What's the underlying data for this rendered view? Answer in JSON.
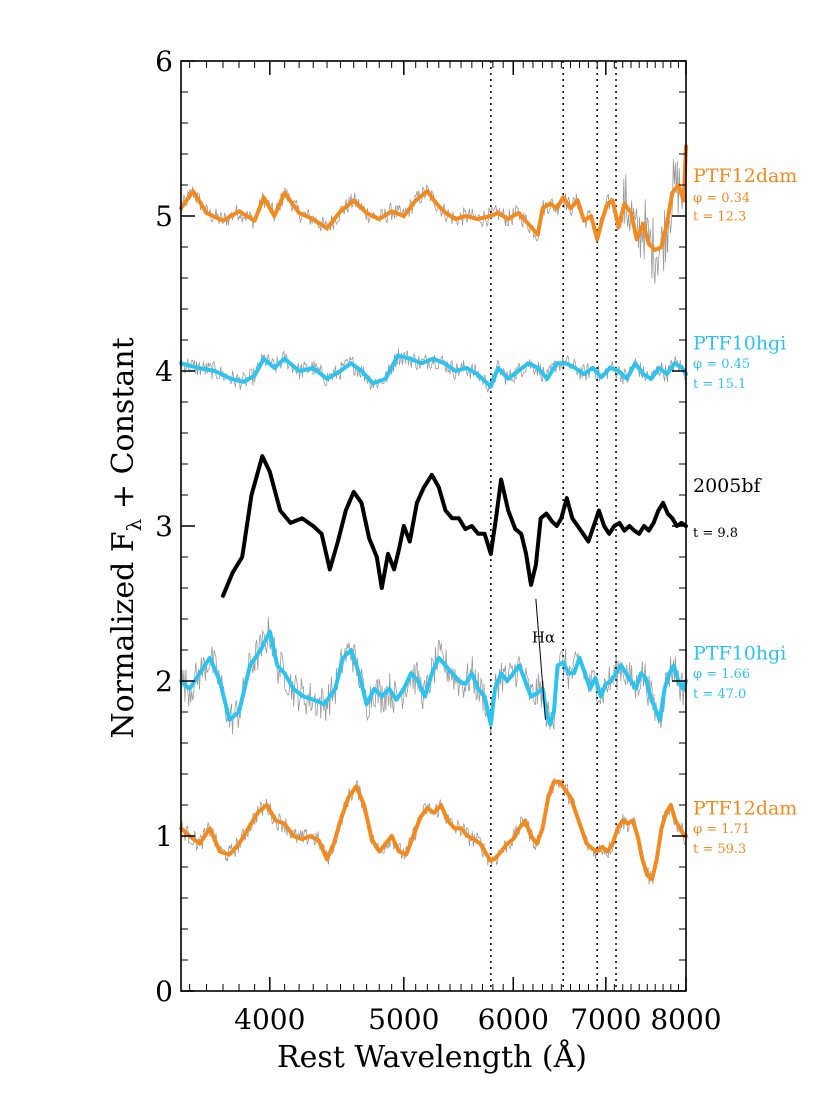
{
  "chart_data": {
    "type": "line",
    "xlabel_main": "Rest Wavelength (",
    "xlabel_unit": "Å",
    "xlabel_close": ")",
    "ylabel_main": "Normalized F",
    "ylabel_sub": "λ",
    "ylabel_rest": " + Constant",
    "x_scale": "log",
    "xlim": [
      3450,
      8000
    ],
    "ylim": [
      0,
      6
    ],
    "grid": false,
    "x_ticks": [
      4000,
      5000,
      6000,
      7000,
      8000
    ],
    "x_tick_labels": [
      "4000",
      "5000",
      "6000",
      "7000",
      "8000"
    ],
    "y_ticks": [
      0,
      1,
      2,
      3,
      4,
      5,
      6
    ],
    "y_tick_labels": [
      "0",
      "1",
      "2",
      "3",
      "4",
      "5",
      "6"
    ],
    "vlines": [
      5780,
      6520,
      6900,
      7120
    ],
    "annotation": {
      "text": "Hα",
      "x": 6310,
      "y": 2.25,
      "line_from": [
        6230,
        2.53
      ],
      "line_to": [
        6330,
        1.75
      ]
    },
    "series": [
      {
        "name": "PTF12dam",
        "labels": [
          "PTF12dam",
          "φ = 0.34",
          "t = 12.3"
        ],
        "label_y": [
          5.22,
          5.09,
          4.97
        ],
        "color": "#f28a1e",
        "noisy": true,
        "x": [
          3450,
          3520,
          3600,
          3700,
          3800,
          3900,
          3960,
          4030,
          4100,
          4200,
          4300,
          4400,
          4500,
          4600,
          4700,
          4800,
          4900,
          5000,
          5100,
          5200,
          5280,
          5360,
          5450,
          5550,
          5650,
          5780,
          5850,
          5950,
          6050,
          6150,
          6250,
          6300,
          6380,
          6450,
          6520,
          6600,
          6680,
          6750,
          6830,
          6900,
          6960,
          7020,
          7080,
          7150,
          7220,
          7300,
          7370,
          7450,
          7520,
          7600,
          7680,
          7750,
          7820,
          7900,
          7970,
          8000
        ],
        "y": [
          5.05,
          5.16,
          5.02,
          4.97,
          5.03,
          4.97,
          5.12,
          5.0,
          5.15,
          5.02,
          4.98,
          4.92,
          5.03,
          5.1,
          5.02,
          4.98,
          5.03,
          5.0,
          5.1,
          5.16,
          5.08,
          5.02,
          4.98,
          5.0,
          4.98,
          5.0,
          5.02,
          4.98,
          5.02,
          4.95,
          4.88,
          5.05,
          5.08,
          5.05,
          5.12,
          5.05,
          5.1,
          4.97,
          5.0,
          4.85,
          4.98,
          5.08,
          5.1,
          4.93,
          5.08,
          5.02,
          4.85,
          4.95,
          4.82,
          4.78,
          4.8,
          4.95,
          5.15,
          5.2,
          5.1,
          5.45
        ]
      },
      {
        "name": "PTF10hgi",
        "labels": [
          "PTF10hgi",
          "φ = 0.45",
          "t = 15.1"
        ],
        "label_y": [
          4.14,
          4.02,
          3.89
        ],
        "color": "#2cc3ef",
        "noisy": true,
        "x": [
          3450,
          3550,
          3650,
          3750,
          3830,
          3900,
          3960,
          4030,
          4100,
          4200,
          4300,
          4400,
          4500,
          4580,
          4660,
          4750,
          4850,
          4950,
          5050,
          5150,
          5250,
          5350,
          5450,
          5550,
          5650,
          5780,
          5850,
          5950,
          6050,
          6150,
          6250,
          6350,
          6450,
          6550,
          6650,
          6750,
          6850,
          6950,
          7050,
          7150,
          7250,
          7350,
          7450,
          7550,
          7650,
          7750,
          7850,
          7950,
          8000
        ],
        "y": [
          4.05,
          4.02,
          4.0,
          3.95,
          3.93,
          3.97,
          4.08,
          4.02,
          4.08,
          4.0,
          4.02,
          3.95,
          4.0,
          4.05,
          4.0,
          3.92,
          3.95,
          4.1,
          4.08,
          4.05,
          4.08,
          4.05,
          4.0,
          4.02,
          3.98,
          3.9,
          4.02,
          3.95,
          4.0,
          4.05,
          4.02,
          3.95,
          4.05,
          4.05,
          4.02,
          3.98,
          4.02,
          3.96,
          4.02,
          4.0,
          3.95,
          4.05,
          3.98,
          3.95,
          4.02,
          3.98,
          4.05,
          4.02,
          3.98
        ]
      },
      {
        "name": "2005bf",
        "labels": [
          "2005bf",
          "t = 9.8"
        ],
        "label_y": [
          3.22,
          2.93
        ],
        "color": "#000000",
        "noisy": false,
        "x": [
          3700,
          3760,
          3820,
          3880,
          3950,
          4000,
          4070,
          4140,
          4220,
          4300,
          4360,
          4420,
          4480,
          4540,
          4600,
          4660,
          4720,
          4780,
          4820,
          4870,
          4920,
          4960,
          5000,
          5050,
          5110,
          5170,
          5240,
          5300,
          5360,
          5420,
          5480,
          5540,
          5600,
          5660,
          5720,
          5780,
          5830,
          5880,
          5950,
          6020,
          6080,
          6130,
          6180,
          6230,
          6280,
          6340,
          6400,
          6450,
          6500,
          6560,
          6620,
          6680,
          6740,
          6800,
          6860,
          6920,
          6980,
          7040,
          7100,
          7160,
          7220,
          7280,
          7340,
          7400,
          7460,
          7520,
          7580,
          7640,
          7700,
          7760,
          7820,
          7880,
          7940,
          8000
        ],
        "y": [
          2.55,
          2.7,
          2.8,
          3.2,
          3.45,
          3.35,
          3.1,
          3.02,
          3.05,
          3.0,
          2.95,
          2.72,
          2.9,
          3.1,
          3.22,
          3.15,
          2.92,
          2.8,
          2.6,
          2.82,
          2.72,
          2.85,
          3.0,
          2.9,
          3.15,
          3.25,
          3.33,
          3.25,
          3.1,
          3.05,
          3.05,
          2.98,
          3.0,
          2.95,
          2.95,
          2.82,
          3.05,
          3.3,
          3.1,
          2.98,
          2.95,
          2.82,
          2.62,
          2.75,
          3.05,
          3.08,
          3.03,
          3.0,
          3.05,
          3.18,
          3.05,
          3.0,
          2.95,
          2.9,
          3.0,
          3.1,
          3.0,
          2.95,
          3.0,
          3.02,
          2.97,
          3.0,
          2.97,
          2.95,
          3.0,
          2.97,
          3.02,
          3.1,
          3.15,
          3.08,
          3.05,
          3.0,
          3.02,
          3.0
        ]
      },
      {
        "name": "PTF10hgi",
        "labels": [
          "PTF10hgi",
          "φ = 1.66",
          "t = 47.0"
        ],
        "label_y": [
          2.14,
          2.02,
          1.89
        ],
        "color": "#2cc3ef",
        "noisy": true,
        "x": [
          3450,
          3500,
          3560,
          3620,
          3680,
          3740,
          3800,
          3870,
          3940,
          4000,
          4050,
          4100,
          4160,
          4230,
          4300,
          4380,
          4460,
          4520,
          4580,
          4640,
          4700,
          4760,
          4820,
          4880,
          4940,
          5000,
          5060,
          5120,
          5180,
          5240,
          5300,
          5360,
          5420,
          5480,
          5540,
          5600,
          5660,
          5720,
          5780,
          5820,
          5880,
          5940,
          6000,
          6060,
          6120,
          6180,
          6240,
          6300,
          6340,
          6380,
          6420,
          6460,
          6520,
          6580,
          6640,
          6700,
          6760,
          6820,
          6880,
          6940,
          7000,
          7060,
          7120,
          7180,
          7240,
          7300,
          7360,
          7420,
          7480,
          7540,
          7600,
          7660,
          7720,
          7780,
          7840,
          7900,
          7960,
          8000
        ],
        "y": [
          2.0,
          1.95,
          2.05,
          2.15,
          2.0,
          1.75,
          1.8,
          2.1,
          2.2,
          2.32,
          2.1,
          2.05,
          1.95,
          1.9,
          1.88,
          1.85,
          1.95,
          2.15,
          2.2,
          2.05,
          1.85,
          1.95,
          1.9,
          1.95,
          1.88,
          1.95,
          2.05,
          2.0,
          1.9,
          2.05,
          2.15,
          2.1,
          2.05,
          2.0,
          1.98,
          2.05,
          1.95,
          1.9,
          1.72,
          1.95,
          2.05,
          2.0,
          2.05,
          2.1,
          2.0,
          1.9,
          1.92,
          1.95,
          1.8,
          1.72,
          1.8,
          2.1,
          2.12,
          2.05,
          2.05,
          2.15,
          2.05,
          1.95,
          2.02,
          1.9,
          1.98,
          2.0,
          2.05,
          2.1,
          2.05,
          2.0,
          1.95,
          2.05,
          2.02,
          1.9,
          1.82,
          1.75,
          1.95,
          2.05,
          2.1,
          2.0,
          1.95,
          2.0
        ]
      },
      {
        "name": "PTF12dam",
        "labels": [
          "PTF12dam",
          "φ = 1.71",
          "t = 59.3"
        ],
        "label_y": [
          1.14,
          1.02,
          0.89
        ],
        "color": "#f28a1e",
        "noisy": true,
        "x": [
          3450,
          3500,
          3560,
          3620,
          3680,
          3740,
          3800,
          3860,
          3920,
          3980,
          4040,
          4100,
          4160,
          4220,
          4280,
          4340,
          4400,
          4450,
          4500,
          4560,
          4620,
          4680,
          4740,
          4800,
          4850,
          4900,
          4960,
          5020,
          5080,
          5140,
          5200,
          5260,
          5320,
          5380,
          5440,
          5500,
          5560,
          5620,
          5680,
          5740,
          5780,
          5830,
          5880,
          5940,
          6000,
          6060,
          6120,
          6180,
          6240,
          6300,
          6360,
          6420,
          6480,
          6540,
          6600,
          6660,
          6720,
          6780,
          6840,
          6900,
          6960,
          7020,
          7080,
          7140,
          7200,
          7260,
          7320,
          7380,
          7440,
          7500,
          7560,
          7620,
          7680,
          7740,
          7800,
          7860,
          7920,
          7980,
          8000
        ],
        "y": [
          1.05,
          1.0,
          0.95,
          1.05,
          0.9,
          0.88,
          0.95,
          1.05,
          1.15,
          1.2,
          1.1,
          1.08,
          1.0,
          0.98,
          1.0,
          0.97,
          0.85,
          0.95,
          1.1,
          1.25,
          1.32,
          1.2,
          0.98,
          0.9,
          0.95,
          1.0,
          0.9,
          0.88,
          1.0,
          1.12,
          1.18,
          1.15,
          1.2,
          1.1,
          1.05,
          1.05,
          1.0,
          0.98,
          0.95,
          0.88,
          0.84,
          0.86,
          0.9,
          0.95,
          0.98,
          1.05,
          1.1,
          1.0,
          0.95,
          1.05,
          1.25,
          1.35,
          1.35,
          1.3,
          1.25,
          1.15,
          1.05,
          0.95,
          0.92,
          0.9,
          0.93,
          0.9,
          0.95,
          1.05,
          1.1,
          1.08,
          1.1,
          1.0,
          0.85,
          0.75,
          0.72,
          0.85,
          1.05,
          1.15,
          1.2,
          1.1,
          1.05,
          1.0,
          1.0
        ]
      }
    ]
  }
}
